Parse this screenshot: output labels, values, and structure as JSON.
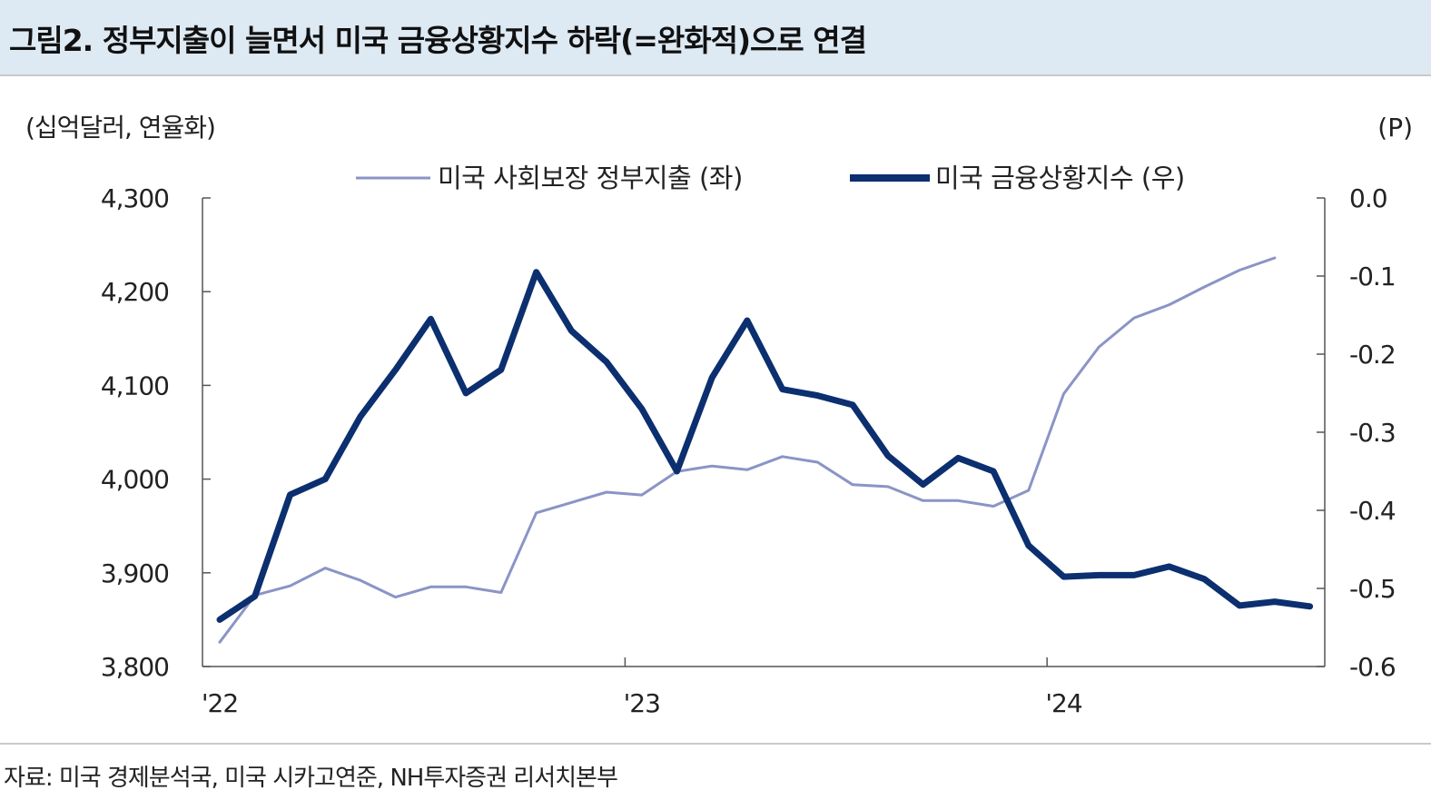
{
  "header": {
    "title": "그림2. 정부지출이 늘면서 미국 금융상황지수 하락(=완화적)으로 연결"
  },
  "footer": {
    "source": "자료: 미국 경제분석국, 미국 시카고연준, NH투자증권 리서치본부"
  },
  "chart_data": {
    "type": "line",
    "left_axis_unit": "(십억달러, 연율화)",
    "right_axis_unit": "(P)",
    "left_ylim": [
      3800,
      4300
    ],
    "left_ticks": [
      "4,300",
      "4,200",
      "4,100",
      "4,000",
      "3,900",
      "3,800"
    ],
    "right_ylim": [
      -0.6,
      0.0
    ],
    "right_ticks": [
      "0.0",
      "-0.1",
      "-0.2",
      "-0.3",
      "-0.4",
      "-0.5",
      "-0.6"
    ],
    "x_tick_labels": [
      "'22",
      "'23",
      "'24"
    ],
    "x": [
      "2022-01",
      "2022-02",
      "2022-03",
      "2022-04",
      "2022-05",
      "2022-06",
      "2022-07",
      "2022-08",
      "2022-09",
      "2022-10",
      "2022-11",
      "2022-12",
      "2023-01",
      "2023-02",
      "2023-03",
      "2023-04",
      "2023-05",
      "2023-06",
      "2023-07",
      "2023-08",
      "2023-09",
      "2023-10",
      "2023-11",
      "2023-12",
      "2024-01",
      "2024-02",
      "2024-03",
      "2024-04",
      "2024-05",
      "2024-06",
      "2024-07",
      "2024-08"
    ],
    "legend_position": "top",
    "grid": false,
    "series": [
      {
        "name": "미국 사회보장 정부지출 (좌)",
        "axis": "left",
        "color": "#8a94c6",
        "values": [
          3826,
          3876,
          3886,
          3905,
          3892,
          3874,
          3885,
          3885,
          3879,
          3964,
          3975,
          3986,
          3983,
          4008,
          4014,
          4010,
          4024,
          4018,
          3994,
          3992,
          3977,
          3977,
          3971,
          3988,
          4091,
          4141,
          4172,
          4186,
          4205,
          4223,
          4236,
          null
        ]
      },
      {
        "name": "미국 금융상황지수 (우)",
        "axis": "right",
        "color": "#0b2f6f",
        "values": [
          -0.54,
          -0.51,
          -0.38,
          -0.36,
          -0.28,
          -0.22,
          -0.155,
          -0.25,
          -0.22,
          -0.095,
          -0.17,
          -0.21,
          -0.27,
          -0.35,
          -0.23,
          -0.157,
          -0.245,
          -0.253,
          -0.265,
          -0.33,
          -0.367,
          -0.333,
          -0.35,
          -0.445,
          -0.485,
          -0.483,
          -0.483,
          -0.472,
          -0.488,
          -0.522,
          -0.517,
          -0.523
        ]
      }
    ]
  }
}
